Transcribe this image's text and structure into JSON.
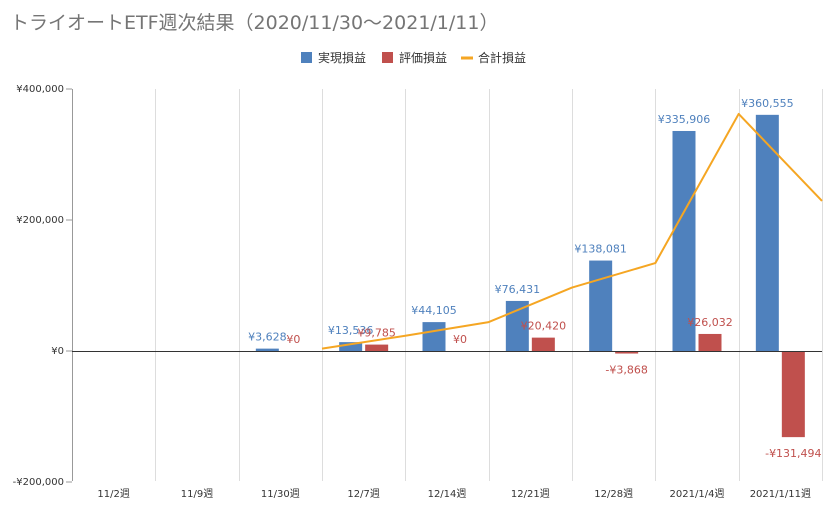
{
  "chart_data": {
    "type": "bar",
    "title": "トライオートETF週次結果（2020/11/30～2021/1/11）",
    "categories": [
      "11/2週",
      "11/9週",
      "11/30週",
      "12/7週",
      "12/14週",
      "12/21週",
      "12/28週",
      "2021/1/4週",
      "2021/1/11週"
    ],
    "ylim": [
      -200000,
      400000
    ],
    "yticks": [
      {
        "value": -200000,
        "label": "-¥200,000"
      },
      {
        "value": 0,
        "label": "¥0"
      },
      {
        "value": 200000,
        "label": "¥200,000"
      },
      {
        "value": 400000,
        "label": "¥400,000"
      }
    ],
    "grid": "vertical",
    "legend_position": "top",
    "series": [
      {
        "name": "実現損益",
        "type": "bar",
        "color": "#4f81bd",
        "values": [
          null,
          null,
          3628,
          13536,
          44105,
          76431,
          138081,
          335906,
          360555
        ],
        "labels": [
          "",
          "",
          "¥3,628",
          "¥13,536",
          "¥44,105",
          "¥76,431",
          "¥138,081",
          "¥335,906",
          "¥360,555"
        ]
      },
      {
        "name": "評価損益",
        "type": "bar",
        "color": "#c0504d",
        "values": [
          null,
          null,
          0,
          9785,
          0,
          20420,
          -3868,
          26032,
          -131494
        ],
        "labels": [
          "",
          "",
          "¥0",
          "¥9,785",
          "¥0",
          "¥20,420",
          "-¥3,868",
          "¥26,032",
          "-¥131,494"
        ]
      },
      {
        "name": "合計損益",
        "type": "line",
        "color": "#f5a623",
        "values": [
          null,
          null,
          3628,
          23321,
          44105,
          96851,
          134213,
          361938,
          229061
        ]
      }
    ]
  }
}
